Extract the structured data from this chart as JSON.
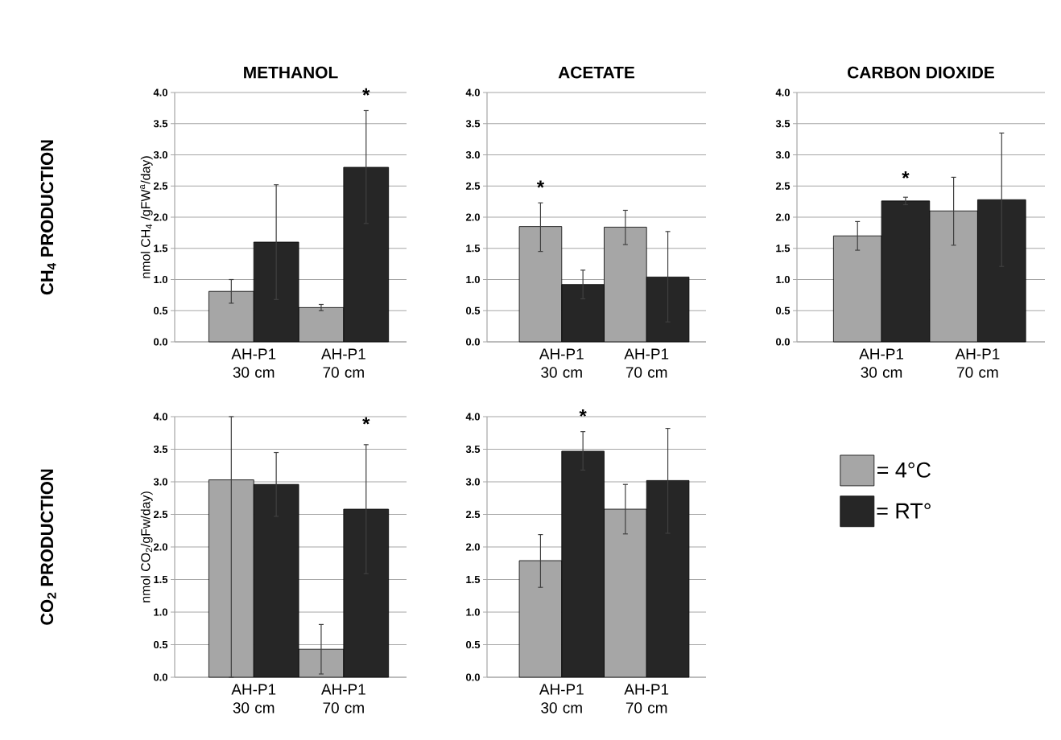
{
  "chart_data": [
    {
      "type": "bar",
      "title": "METHANOL",
      "ylabel": "nmol CH$_{4}$ /gFW$^{a}$/day)",
      "categories": [
        "AH-P1 30 cm",
        "AH-P1 70 cm"
      ],
      "series": [
        {
          "color": "#a6a6a6",
          "values": [
            0.81,
            0.55
          ],
          "errors": [
            [
              0.62,
              1.0
            ],
            [
              0.5,
              0.6
            ]
          ]
        },
        {
          "color": "#262626",
          "values": [
            1.6,
            2.8
          ],
          "errors": [
            [
              0.68,
              2.52
            ],
            [
              1.9,
              3.71
            ]
          ]
        }
      ],
      "ylim": [
        0,
        4
      ],
      "yticks": [
        {
          "value": 0,
          "label": "0.0"
        },
        0.5,
        {
          "value": 1,
          "label": "1.0"
        },
        1.5,
        {
          "value": 2,
          "label": "2.0"
        },
        2.5,
        {
          "value": 3,
          "label": "3.0"
        },
        3.5,
        {
          "value": 4,
          "label": "4.0"
        }
      ],
      "grid": "y",
      "annotations": [
        "CH$_{4}$ PRODUCTION",
        "*"
      ]
    },
    {
      "type": "bar",
      "title": "ACETATE",
      "categories": [
        "AH-P1 30 cm",
        "AH-P1 70 cm"
      ],
      "series": [
        {
          "color": "#a6a6a6",
          "values": [
            1.85,
            1.84
          ],
          "errors": [
            [
              1.45,
              2.23
            ],
            [
              1.56,
              2.11
            ]
          ]
        },
        {
          "color": "#262626",
          "values": [
            0.92,
            1.04
          ],
          "errors": [
            [
              0.69,
              1.15
            ],
            [
              0.32,
              1.77
            ]
          ]
        }
      ],
      "ylim": [
        0,
        4
      ],
      "yticks": [
        {
          "value": 0,
          "label": "0.0"
        },
        0.5,
        {
          "value": 1,
          "label": "1.0"
        },
        1.5,
        {
          "value": 2,
          "label": "2.0"
        },
        2.5,
        {
          "value": 3,
          "label": "3.0"
        },
        3.5,
        {
          "value": 4,
          "label": "4.0"
        }
      ],
      "grid": "y",
      "annotations": [
        "*"
      ]
    },
    {
      "type": "bar",
      "title": "CARBON DIOXIDE",
      "categories": [
        "AH-P1 30 cm",
        "AH-P1 70 cm"
      ],
      "series": [
        {
          "color": "#a6a6a6",
          "values": [
            1.7,
            2.1
          ],
          "errors": [
            [
              1.47,
              1.93
            ],
            [
              1.55,
              2.64
            ]
          ]
        },
        {
          "color": "#262626",
          "values": [
            2.26,
            2.28
          ],
          "errors": [
            [
              2.2,
              2.32
            ],
            [
              1.21,
              3.35
            ]
          ]
        }
      ],
      "ylim": [
        0,
        4
      ],
      "yticks": [
        {
          "value": 0,
          "label": "0.0"
        },
        0.5,
        {
          "value": 1,
          "label": "1.0"
        },
        1.5,
        {
          "value": 2,
          "label": "2.0"
        },
        2.5,
        {
          "value": 3,
          "label": "3.0"
        },
        3.5,
        {
          "value": 4,
          "label": "4.0"
        }
      ],
      "grid": "y",
      "annotations": [
        "*"
      ]
    },
    {
      "type": "bar",
      "ylabel": "nmol CO$_{2}$/gFw/day)",
      "categories": [
        "AH-P1 30 cm",
        "AH-P1 70 cm"
      ],
      "series": [
        {
          "color": "#a6a6a6",
          "values": [
            3.03,
            0.43
          ],
          "errors": [
            [
              0.0,
              4.0
            ],
            [
              0.05,
              0.81
            ]
          ]
        },
        {
          "color": "#262626",
          "values": [
            2.96,
            2.58
          ],
          "errors": [
            [
              2.47,
              3.45
            ],
            [
              1.59,
              3.57
            ]
          ]
        }
      ],
      "ylim": [
        0,
        4
      ],
      "yticks": [
        {
          "value": 0,
          "label": "0.0"
        },
        0.5,
        {
          "value": 1,
          "label": "1.0"
        },
        1.5,
        {
          "value": 2,
          "label": "2.0"
        },
        2.5,
        {
          "value": 3,
          "label": "3.0"
        },
        3.5,
        {
          "value": 4,
          "label": "4.0"
        }
      ],
      "grid": "y",
      "annotations": [
        "CO$_{2}$ PRODUCTION",
        "*"
      ]
    },
    {
      "type": "bar",
      "categories": [
        "AH-P1 30 cm",
        "AH-P1 70 cm"
      ],
      "series": [
        {
          "name": "= 4°C",
          "color": "#a6a6a6",
          "values": [
            1.79,
            2.58
          ],
          "errors": [
            [
              1.38,
              2.19
            ],
            [
              2.2,
              2.96
            ]
          ]
        },
        {
          "name": "= RT°",
          "color": "#262626",
          "values": [
            3.47,
            3.02
          ],
          "errors": [
            [
              3.18,
              3.77
            ],
            [
              2.21,
              3.82
            ]
          ]
        }
      ],
      "ylim": [
        0,
        4
      ],
      "yticks": [
        {
          "value": 0,
          "label": "0.0"
        },
        0.5,
        {
          "value": 1,
          "label": "1.0"
        },
        1.5,
        {
          "value": 2,
          "label": "2.0"
        },
        2.5,
        {
          "value": 3,
          "label": "3.0"
        },
        3.5,
        {
          "value": 4,
          "label": "4.0"
        }
      ],
      "grid": "y",
      "legend": "right",
      "annotations": [
        "*"
      ]
    }
  ]
}
